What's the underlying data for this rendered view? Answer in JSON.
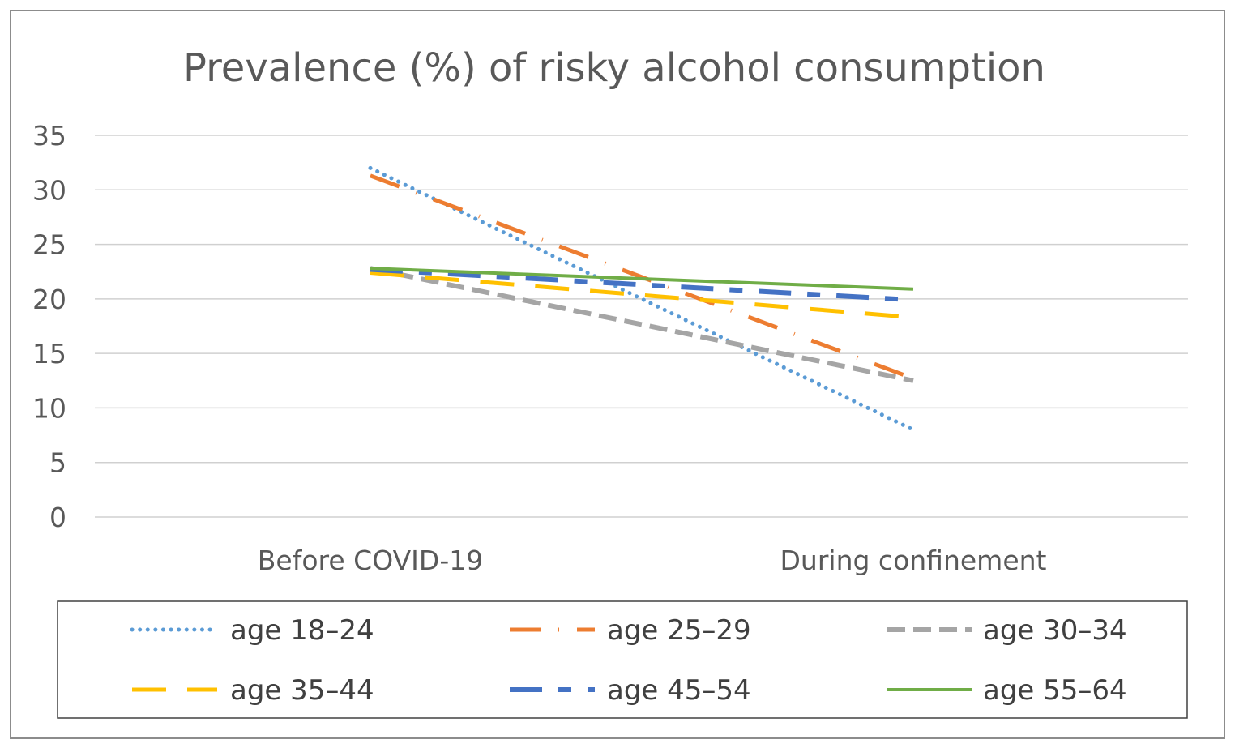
{
  "chart_data": {
    "type": "line",
    "title": "Prevalence (%) of risky alcohol consumption",
    "categories": [
      "Before COVID-19",
      "During confinement"
    ],
    "ylim": [
      0,
      35
    ],
    "yticks": [
      0,
      5,
      10,
      15,
      20,
      25,
      30,
      35
    ],
    "yticklabels": [
      "0",
      "5",
      "10",
      "15",
      "20",
      "25",
      "30",
      "35"
    ],
    "grid": true,
    "legend_position": "bottom",
    "xlabel": "",
    "ylabel": "",
    "series": [
      {
        "name": "age 18–24",
        "values": [
          32,
          8
        ],
        "color": "#5b9bd5",
        "dash": "dotted"
      },
      {
        "name": "age 25–29",
        "values": [
          31.3,
          12.7
        ],
        "color": "#ed7d31",
        "dash": "dash-dot"
      },
      {
        "name": "age 30–34",
        "values": [
          22.8,
          12.5
        ],
        "color": "#a5a5a5",
        "dash": "dashed"
      },
      {
        "name": "age 35–44",
        "values": [
          22.4,
          18.3
        ],
        "color": "#ffc000",
        "dash": "long-dash"
      },
      {
        "name": "age 45–54",
        "values": [
          22.7,
          19.9
        ],
        "color": "#4472c4",
        "dash": "long-dash-dot"
      },
      {
        "name": "age 55–64",
        "values": [
          22.8,
          20.9
        ],
        "color": "#70ad47",
        "dash": "solid"
      }
    ]
  }
}
